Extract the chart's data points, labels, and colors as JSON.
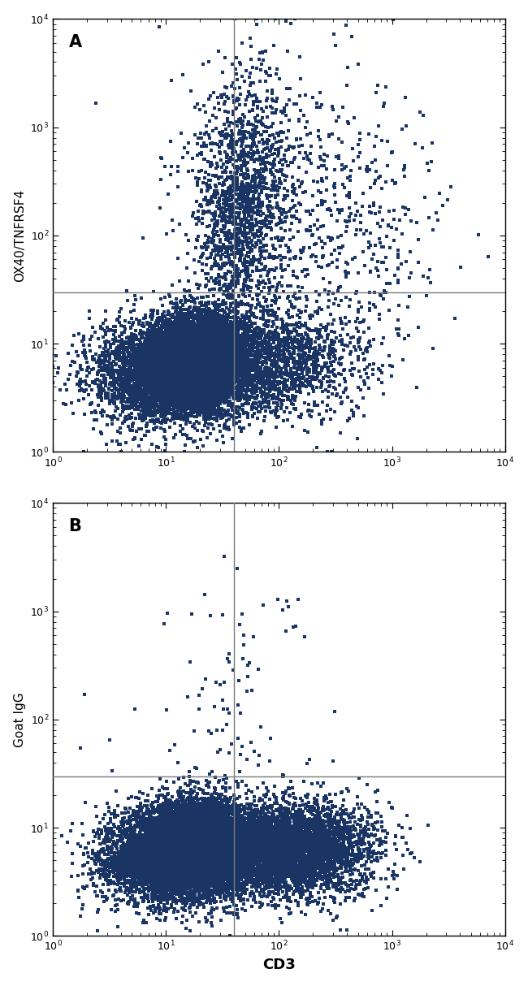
{
  "panel_A": {
    "label": "A",
    "ylabel": "OX40/TNFRSF4",
    "gate_x": 40,
    "gate_y": 30,
    "clusters": [
      {
        "n": 5000,
        "x_log_mu": 1.05,
        "x_log_sig": 0.32,
        "y_log_mu": 0.72,
        "y_log_sig": 0.22
      },
      {
        "n": 3000,
        "x_log_mu": 1.22,
        "x_log_sig": 0.2,
        "y_log_mu": 0.9,
        "y_log_sig": 0.2
      },
      {
        "n": 1500,
        "x_log_mu": 1.42,
        "x_log_sig": 0.18,
        "y_log_mu": 0.88,
        "y_log_sig": 0.22
      },
      {
        "n": 600,
        "x_log_mu": 1.58,
        "x_log_sig": 0.16,
        "y_log_mu": 2.0,
        "y_log_sig": 0.55
      },
      {
        "n": 500,
        "x_log_mu": 1.68,
        "x_log_sig": 0.2,
        "y_log_mu": 2.3,
        "y_log_sig": 0.55
      },
      {
        "n": 400,
        "x_log_mu": 1.8,
        "x_log_sig": 0.18,
        "y_log_mu": 2.5,
        "y_log_sig": 0.55
      },
      {
        "n": 300,
        "x_log_mu": 2.0,
        "x_log_sig": 0.45,
        "y_log_mu": 2.3,
        "y_log_sig": 0.65
      },
      {
        "n": 200,
        "x_log_mu": 2.2,
        "x_log_sig": 0.45,
        "y_log_mu": 2.1,
        "y_log_sig": 0.6
      },
      {
        "n": 100,
        "x_log_mu": 2.5,
        "x_log_sig": 0.4,
        "y_log_mu": 2.5,
        "y_log_sig": 0.6
      },
      {
        "n": 60,
        "x_log_mu": 2.8,
        "x_log_sig": 0.35,
        "y_log_mu": 2.2,
        "y_log_sig": 0.55
      },
      {
        "n": 40,
        "x_log_mu": 3.0,
        "x_log_sig": 0.3,
        "y_log_mu": 2.0,
        "y_log_sig": 0.5
      },
      {
        "n": 30,
        "x_log_mu": 1.3,
        "x_log_sig": 0.22,
        "y_log_mu": 2.5,
        "y_log_sig": 0.65
      },
      {
        "n": 20,
        "x_log_mu": 3.2,
        "x_log_sig": 0.3,
        "y_log_mu": 1.5,
        "y_log_sig": 0.4
      },
      {
        "n": 800,
        "x_log_mu": 1.85,
        "x_log_sig": 0.25,
        "y_log_mu": 0.8,
        "y_log_sig": 0.22
      },
      {
        "n": 500,
        "x_log_mu": 2.1,
        "x_log_sig": 0.3,
        "y_log_mu": 0.85,
        "y_log_sig": 0.25
      },
      {
        "n": 200,
        "x_log_mu": 2.5,
        "x_log_sig": 0.3,
        "y_log_mu": 0.9,
        "y_log_sig": 0.3
      }
    ]
  },
  "panel_B": {
    "label": "B",
    "ylabel": "Goat IgG",
    "xlabel": "CD3",
    "gate_x": 40,
    "gate_y": 30,
    "clusters": [
      {
        "n": 5000,
        "x_log_mu": 1.05,
        "x_log_sig": 0.3,
        "y_log_mu": 0.72,
        "y_log_sig": 0.2
      },
      {
        "n": 3500,
        "x_log_mu": 1.22,
        "x_log_sig": 0.2,
        "y_log_mu": 0.88,
        "y_log_sig": 0.2
      },
      {
        "n": 2000,
        "x_log_mu": 1.42,
        "x_log_sig": 0.18,
        "y_log_mu": 0.85,
        "y_log_sig": 0.2
      },
      {
        "n": 1800,
        "x_log_mu": 1.9,
        "x_log_sig": 0.3,
        "y_log_mu": 0.78,
        "y_log_sig": 0.2
      },
      {
        "n": 1200,
        "x_log_mu": 2.1,
        "x_log_sig": 0.28,
        "y_log_mu": 0.8,
        "y_log_sig": 0.22
      },
      {
        "n": 800,
        "x_log_mu": 2.3,
        "x_log_sig": 0.28,
        "y_log_mu": 0.8,
        "y_log_sig": 0.22
      },
      {
        "n": 400,
        "x_log_mu": 2.5,
        "x_log_sig": 0.28,
        "y_log_mu": 0.82,
        "y_log_sig": 0.22
      },
      {
        "n": 25,
        "x_log_mu": 1.45,
        "x_log_sig": 0.2,
        "y_log_mu": 2.2,
        "y_log_sig": 0.5
      },
      {
        "n": 15,
        "x_log_mu": 1.55,
        "x_log_sig": 0.18,
        "y_log_mu": 2.4,
        "y_log_sig": 0.45
      },
      {
        "n": 8,
        "x_log_mu": 1.65,
        "x_log_sig": 0.15,
        "y_log_mu": 2.6,
        "y_log_sig": 0.35
      },
      {
        "n": 6,
        "x_log_mu": 2.0,
        "x_log_sig": 0.2,
        "y_log_mu": 2.95,
        "y_log_sig": 0.15
      },
      {
        "n": 5,
        "x_log_mu": 2.1,
        "x_log_sig": 0.15,
        "y_log_mu": 3.05,
        "y_log_sig": 0.12
      },
      {
        "n": 10,
        "x_log_mu": 1.1,
        "x_log_sig": 0.18,
        "y_log_mu": 1.8,
        "y_log_sig": 0.4
      },
      {
        "n": 5,
        "x_log_mu": 0.5,
        "x_log_sig": 0.15,
        "y_log_mu": 1.9,
        "y_log_sig": 0.35
      },
      {
        "n": 15,
        "x_log_mu": 1.8,
        "x_log_sig": 0.25,
        "y_log_mu": 1.5,
        "y_log_sig": 0.4
      },
      {
        "n": 20,
        "x_log_mu": 1.6,
        "x_log_sig": 0.25,
        "y_log_mu": 1.3,
        "y_log_sig": 0.35
      }
    ]
  },
  "dot_color": "#1a3464",
  "dot_size": 9,
  "gate_color": "#7a7a7a",
  "gate_linewidth": 1.0,
  "xlim": [
    1,
    10000
  ],
  "ylim": [
    1,
    10000
  ],
  "label_fontsize": 11,
  "xlabel_fontsize": 13,
  "panel_label_fontsize": 15,
  "background_color": "#ffffff"
}
